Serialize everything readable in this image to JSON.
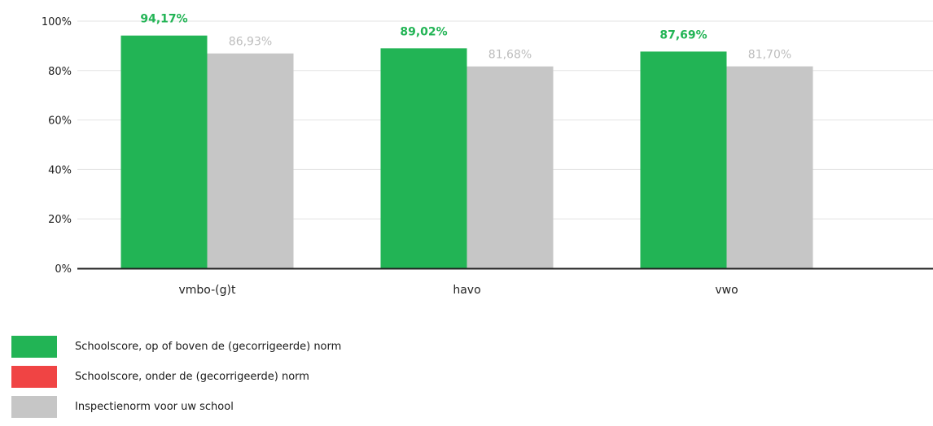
{
  "chart_data": {
    "type": "bar",
    "categories": [
      "vmbo-(g)t",
      "havo",
      "vwo"
    ],
    "series": [
      {
        "name": "Schoolscore, op of boven de (gecorrigeerde) norm",
        "values": [
          94.17,
          89.02,
          87.69
        ],
        "labels": [
          "94,17%",
          "89,02%",
          "87,69%"
        ],
        "color": "#22b455"
      },
      {
        "name": "Inspectienorm voor uw school",
        "values": [
          86.93,
          81.68,
          81.7
        ],
        "labels": [
          "86,93%",
          "81,68%",
          "81,70%"
        ],
        "color": "#c6c6c6"
      }
    ],
    "ylim": [
      0,
      100
    ],
    "yticks": [
      0,
      20,
      40,
      60,
      80,
      100
    ],
    "ytick_labels": [
      "0%",
      "20%",
      "40%",
      "60%",
      "80%",
      "100%"
    ],
    "grid": true,
    "legend_position": "bottom-left"
  },
  "legend": {
    "items": [
      {
        "label": "Schoolscore, op of boven de (gecorrigeerde) norm",
        "color": "#22b455"
      },
      {
        "label": "Schoolscore, onder de (gecorrigeerde) norm",
        "color": "#f04444"
      },
      {
        "label": "Inspectienorm voor uw school",
        "color": "#c6c6c6"
      }
    ]
  }
}
